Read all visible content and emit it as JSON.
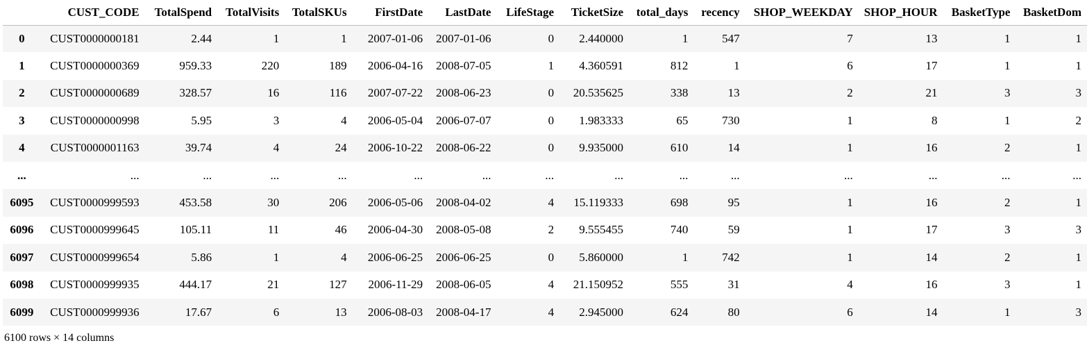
{
  "table": {
    "index_header": "",
    "columns": [
      "CUST_CODE",
      "TotalSpend",
      "TotalVisits",
      "TotalSKUs",
      "FirstDate",
      "LastDate",
      "LifeStage",
      "TicketSize",
      "total_days",
      "recency",
      "SHOP_WEEKDAY",
      "SHOP_HOUR",
      "BasketType",
      "BasketDom"
    ],
    "rows": [
      {
        "index": "0",
        "cells": [
          "CUST0000000181",
          "2.44",
          "1",
          "1",
          "2007-01-06",
          "2007-01-06",
          "0",
          "2.440000",
          "1",
          "547",
          "7",
          "13",
          "1",
          "1"
        ]
      },
      {
        "index": "1",
        "cells": [
          "CUST0000000369",
          "959.33",
          "220",
          "189",
          "2006-04-16",
          "2008-07-05",
          "1",
          "4.360591",
          "812",
          "1",
          "6",
          "17",
          "1",
          "1"
        ]
      },
      {
        "index": "2",
        "cells": [
          "CUST0000000689",
          "328.57",
          "16",
          "116",
          "2007-07-22",
          "2008-06-23",
          "0",
          "20.535625",
          "338",
          "13",
          "2",
          "21",
          "3",
          "3"
        ]
      },
      {
        "index": "3",
        "cells": [
          "CUST0000000998",
          "5.95",
          "3",
          "4",
          "2006-05-04",
          "2006-07-07",
          "0",
          "1.983333",
          "65",
          "730",
          "1",
          "8",
          "1",
          "2"
        ]
      },
      {
        "index": "4",
        "cells": [
          "CUST0000001163",
          "39.74",
          "4",
          "24",
          "2006-10-22",
          "2008-06-22",
          "0",
          "9.935000",
          "610",
          "14",
          "1",
          "16",
          "2",
          "1"
        ]
      },
      {
        "index": "...",
        "cells": [
          "...",
          "...",
          "...",
          "...",
          "...",
          "...",
          "...",
          "...",
          "...",
          "...",
          "...",
          "...",
          "...",
          "..."
        ]
      },
      {
        "index": "6095",
        "cells": [
          "CUST0000999593",
          "453.58",
          "30",
          "206",
          "2006-05-06",
          "2008-04-02",
          "4",
          "15.119333",
          "698",
          "95",
          "1",
          "16",
          "2",
          "1"
        ]
      },
      {
        "index": "6096",
        "cells": [
          "CUST0000999645",
          "105.11",
          "11",
          "46",
          "2006-04-30",
          "2008-05-08",
          "2",
          "9.555455",
          "740",
          "59",
          "1",
          "17",
          "3",
          "3"
        ]
      },
      {
        "index": "6097",
        "cells": [
          "CUST0000999654",
          "5.86",
          "1",
          "4",
          "2006-06-25",
          "2006-06-25",
          "0",
          "5.860000",
          "1",
          "742",
          "1",
          "14",
          "2",
          "1"
        ]
      },
      {
        "index": "6098",
        "cells": [
          "CUST0000999935",
          "444.17",
          "21",
          "127",
          "2006-11-29",
          "2008-06-05",
          "4",
          "21.150952",
          "555",
          "31",
          "4",
          "16",
          "3",
          "1"
        ]
      },
      {
        "index": "6099",
        "cells": [
          "CUST0000999936",
          "17.67",
          "6",
          "13",
          "2006-08-03",
          "2008-04-17",
          "4",
          "2.945000",
          "624",
          "80",
          "6",
          "14",
          "1",
          "3"
        ]
      }
    ]
  },
  "footer": {
    "shape_text": "6100 rows × 14 columns"
  }
}
